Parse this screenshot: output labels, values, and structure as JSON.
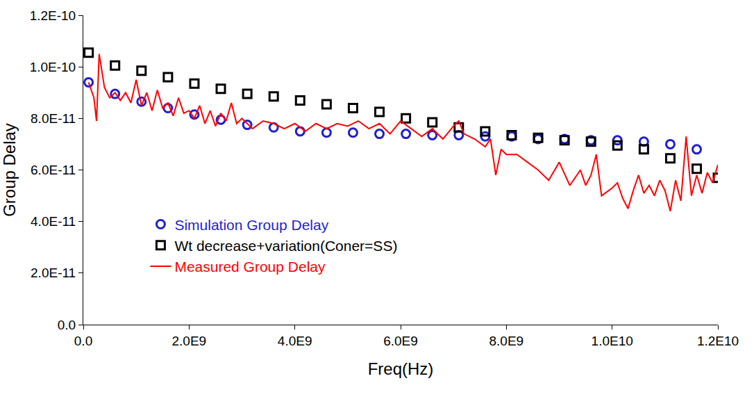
{
  "chart_data": {
    "type": "scatter",
    "x_label": "Freq(Hz)",
    "y_label": "Group Delay",
    "xlim": [
      0,
      12000000000
    ],
    "xticks": [
      {
        "value": 0,
        "label": "0.0"
      },
      {
        "value": 2000000000,
        "label": "2.0E9"
      },
      {
        "value": 4000000000,
        "label": "4.0E9"
      },
      {
        "value": 6000000000,
        "label": "6.0E9"
      },
      {
        "value": 8000000000,
        "label": "8.0E9"
      },
      {
        "value": 10000000000,
        "label": "1.0E10"
      },
      {
        "value": 12000000000,
        "label": "1.2E10"
      }
    ],
    "ylim": [
      0,
      1.2e-10
    ],
    "yticks": [
      {
        "value": 0,
        "label": "0.0"
      },
      {
        "value": 2e-11,
        "label": "2.0E-11"
      },
      {
        "value": 4e-11,
        "label": "4.0E-11"
      },
      {
        "value": 6e-11,
        "label": "6.0E-11"
      },
      {
        "value": 8e-11,
        "label": "8.0E-11"
      },
      {
        "value": 1e-10,
        "label": "1.0E-10"
      },
      {
        "value": 1.2e-10,
        "label": "1.2E-10"
      }
    ],
    "grid": false,
    "legend": "lower left",
    "series": [
      {
        "name": "Simulation Group Delay",
        "type": "scatter",
        "marker": "circle",
        "color": "#1f1fd0",
        "x": [
          100000000.0,
          600000000.0,
          1100000000.0,
          1600000000.0,
          2100000000.0,
          2600000000.0,
          3100000000.0,
          3600000000.0,
          4100000000.0,
          4600000000.0,
          5100000000.0,
          5600000000.0,
          6100000000.0,
          6600000000.0,
          7100000000.0,
          7600000000.0,
          8100000000.0,
          8600000000.0,
          9100000000.0,
          9600000000.0,
          10100000000.0,
          10600000000.0,
          11100000000.0,
          11600000000.0
        ],
        "values": [
          9.4e-11,
          8.95e-11,
          8.65e-11,
          8.4e-11,
          8.15e-11,
          7.95e-11,
          7.75e-11,
          7.65e-11,
          7.5e-11,
          7.45e-11,
          7.45e-11,
          7.4e-11,
          7.4e-11,
          7.35e-11,
          7.35e-11,
          7.3e-11,
          7.3e-11,
          7.2e-11,
          7.2e-11,
          7.15e-11,
          7.15e-11,
          7.1e-11,
          7e-11,
          6.8e-11
        ]
      },
      {
        "name": "Wt decrease+variation(Coner=SS)",
        "type": "scatter",
        "marker": "square",
        "color": "#000000",
        "x": [
          100000000.0,
          600000000.0,
          1100000000.0,
          1600000000.0,
          2100000000.0,
          2600000000.0,
          3100000000.0,
          3600000000.0,
          4100000000.0,
          4600000000.0,
          5100000000.0,
          5600000000.0,
          6100000000.0,
          6600000000.0,
          7100000000.0,
          7600000000.0,
          8100000000.0,
          8600000000.0,
          9100000000.0,
          9600000000.0,
          10100000000.0,
          10600000000.0,
          11100000000.0,
          11600000000.0,
          12000000000.0
        ],
        "values": [
          1.055e-10,
          1.005e-10,
          9.85e-11,
          9.6e-11,
          9.35e-11,
          9.15e-11,
          8.95e-11,
          8.85e-11,
          8.7e-11,
          8.55e-11,
          8.4e-11,
          8.25e-11,
          8e-11,
          7.85e-11,
          7.65e-11,
          7.5e-11,
          7.35e-11,
          7.25e-11,
          7.15e-11,
          7.1e-11,
          6.95e-11,
          6.8e-11,
          6.45e-11,
          6.05e-11,
          5.7e-11
        ]
      },
      {
        "name": "Measured Group Delay",
        "type": "line",
        "line_style": "solid",
        "color": "#ff0000",
        "x": [
          100000000.0,
          200000000.0,
          250000000.0,
          300000000.0,
          400000000.0,
          500000000.0,
          600000000.0,
          700000000.0,
          800000000.0,
          900000000.0,
          1000000000.0,
          1100000000.0,
          1200000000.0,
          1300000000.0,
          1400000000.0,
          1500000000.0,
          1600000000.0,
          1700000000.0,
          1800000000.0,
          1900000000.0,
          2000000000.0,
          2100000000.0,
          2200000000.0,
          2300000000.0,
          2400000000.0,
          2500000000.0,
          2600000000.0,
          2700000000.0,
          2800000000.0,
          2900000000.0,
          3000000000.0,
          3200000000.0,
          3400000000.0,
          3600000000.0,
          3800000000.0,
          4000000000.0,
          4200000000.0,
          4400000000.0,
          4600000000.0,
          4800000000.0,
          5000000000.0,
          5200000000.0,
          5400000000.0,
          5600000000.0,
          5800000000.0,
          6000000000.0,
          6200000000.0,
          6400000000.0,
          6600000000.0,
          6800000000.0,
          7000000000.0,
          7100000000.0,
          7200000000.0,
          7400000000.0,
          7600000000.0,
          7700000000.0,
          7800000000.0,
          7900000000.0,
          8000000000.0,
          8200000000.0,
          8400000000.0,
          8600000000.0,
          8800000000.0,
          9000000000.0,
          9200000000.0,
          9400000000.0,
          9500000000.0,
          9600000000.0,
          9700000000.0,
          9800000000.0,
          10000000000.0,
          10100000000.0,
          10200000000.0,
          10300000000.0,
          10400000000.0,
          10500000000.0,
          10600000000.0,
          10700000000.0,
          10800000000.0,
          10900000000.0,
          11000000000.0,
          11100000000.0,
          11200000000.0,
          11300000000.0,
          11400000000.0,
          11500000000.0,
          11600000000.0,
          11700000000.0,
          11800000000.0,
          11900000000.0,
          12000000000.0
        ],
        "values": [
          9.4e-11,
          8.8e-11,
          7.9e-11,
          1.05e-10,
          9.2e-11,
          8.8e-11,
          9e-11,
          8.7e-11,
          9e-11,
          8.6e-11,
          9.5e-11,
          8.5e-11,
          9e-11,
          8.3e-11,
          9.1e-11,
          8.4e-11,
          8.6e-11,
          8.1e-11,
          8.8e-11,
          8.2e-11,
          8.3e-11,
          8e-11,
          8.5e-11,
          7.8e-11,
          8.3e-11,
          7.7e-11,
          8.2e-11,
          7.9e-11,
          8.6e-11,
          7.8e-11,
          8e-11,
          7.6e-11,
          7.9e-11,
          7.8e-11,
          7.6e-11,
          7.8e-11,
          7.5e-11,
          7.8e-11,
          7.6e-11,
          7.8e-11,
          7.7e-11,
          7.9e-11,
          7.6e-11,
          7.8e-11,
          7.4e-11,
          7.9e-11,
          7.6e-11,
          7.3e-11,
          7.6e-11,
          7.2e-11,
          7.7e-11,
          7.9e-11,
          7.4e-11,
          7.2e-11,
          6.9e-11,
          7.2e-11,
          5.8e-11,
          6.8e-11,
          6.6e-11,
          6.6e-11,
          6.3e-11,
          6e-11,
          5.6e-11,
          6.3e-11,
          5.4e-11,
          6e-11,
          5.4e-11,
          5.8e-11,
          6.6e-11,
          5e-11,
          5.3e-11,
          5.5e-11,
          4.9e-11,
          4.5e-11,
          5.2e-11,
          5.8e-11,
          5.1e-11,
          5.4e-11,
          5e-11,
          5.6e-11,
          5.2e-11,
          4.4e-11,
          5.6e-11,
          4.8e-11,
          7.3e-11,
          5e-11,
          5.8e-11,
          5.1e-11,
          5.9e-11,
          5.5e-11,
          6.2e-11
        ]
      }
    ]
  }
}
